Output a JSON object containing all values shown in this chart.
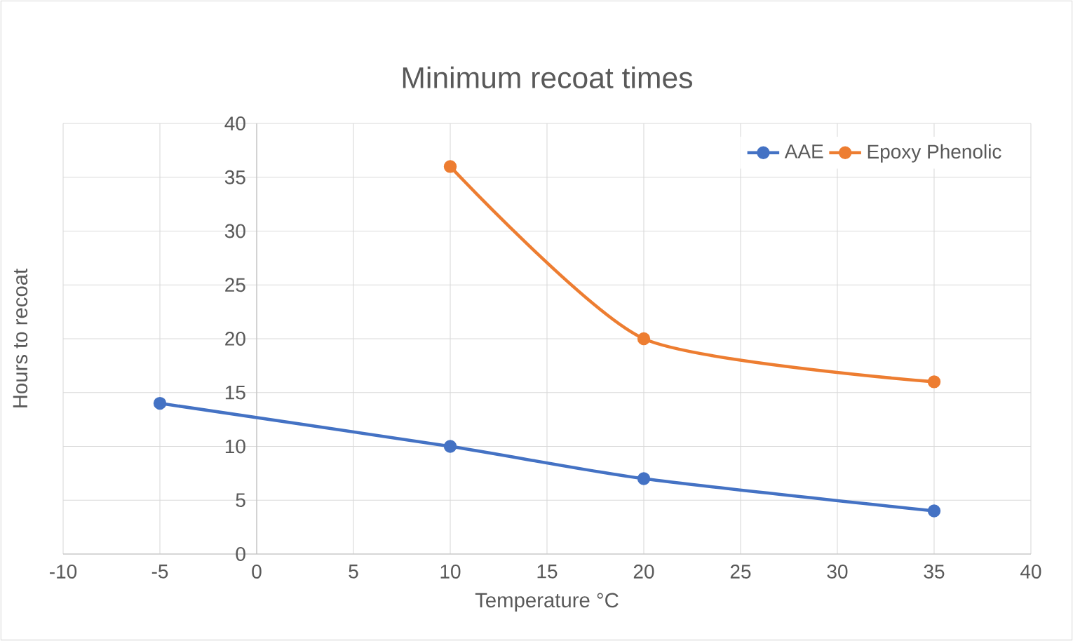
{
  "chart_data": {
    "type": "line",
    "title": "Minimum recoat times",
    "xlabel": "Temperature °C",
    "ylabel": "Hours to recoat",
    "series": [
      {
        "name": "AAE",
        "color": "#4472c4",
        "x": [
          -5,
          10,
          20,
          35
        ],
        "values": [
          14,
          10,
          7,
          4
        ]
      },
      {
        "name": "Epoxy Phenolic",
        "color": "#ed7d31",
        "x": [
          10,
          20,
          35
        ],
        "values": [
          36,
          20,
          16
        ]
      }
    ],
    "xlim": [
      -10,
      40
    ],
    "xticks": [
      -10,
      -5,
      0,
      5,
      10,
      15,
      20,
      25,
      30,
      35,
      40
    ],
    "ylim": [
      0,
      40
    ],
    "yticks": [
      0,
      5,
      10,
      15,
      20,
      25,
      30,
      35,
      40
    ],
    "grid": true,
    "legend": "top right",
    "marker": "circle",
    "line_style": "solid"
  }
}
